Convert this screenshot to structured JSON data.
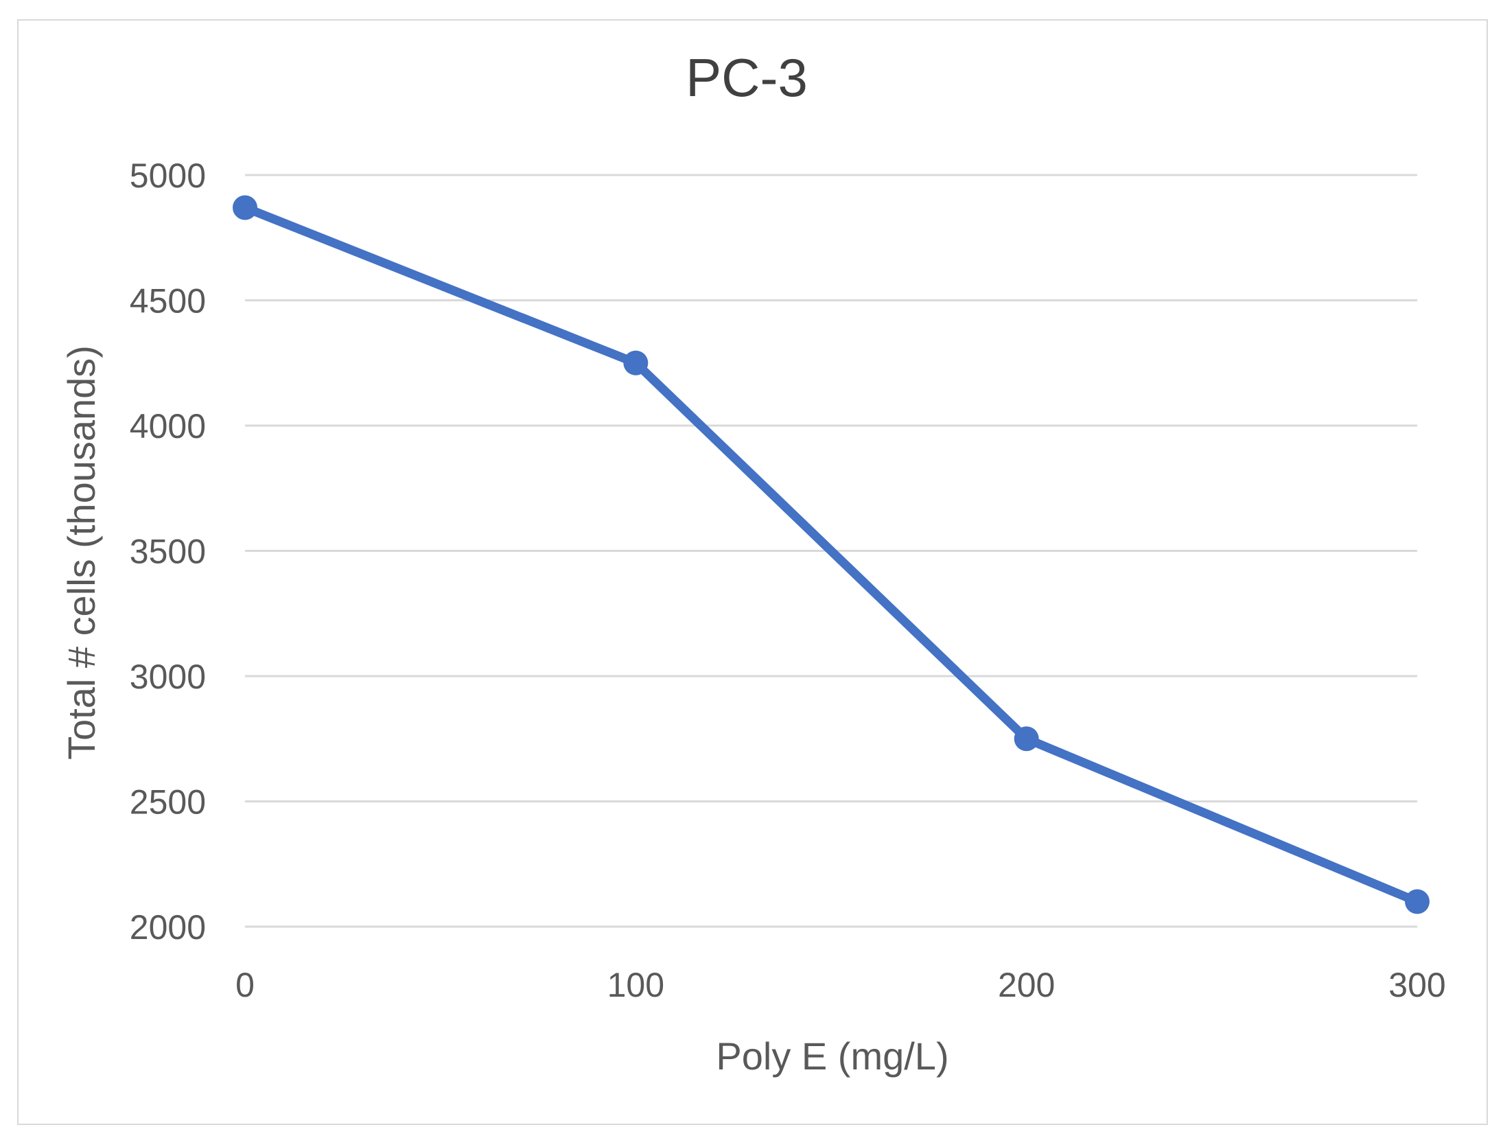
{
  "chart_data": {
    "type": "line",
    "title": "PC-3",
    "xlabel": "Poly E (mg/L)",
    "ylabel": "Total # cells (thousands)",
    "x": [
      0,
      100,
      200,
      300
    ],
    "series": [
      {
        "name": "PC-3",
        "values": [
          4870,
          4250,
          2750,
          2100
        ]
      }
    ],
    "xlim": [
      0,
      300
    ],
    "ylim": [
      2000,
      5000
    ],
    "xticks": [
      "0",
      "100",
      "200",
      "300"
    ],
    "yticks": [
      "2000",
      "2500",
      "3000",
      "3500",
      "4000",
      "4500",
      "5000"
    ],
    "grid": true,
    "legend": "none",
    "colors": {
      "series": "#4472c4",
      "grid": "#d9d9d9",
      "frame": "#d9d9d9"
    }
  }
}
